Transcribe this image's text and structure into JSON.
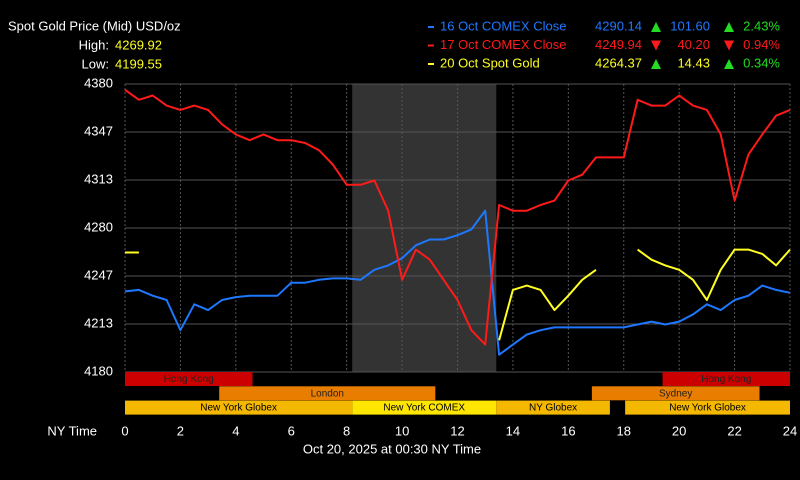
{
  "chart_data": {
    "type": "line",
    "title": "Spot Gold Price (Mid) USD/oz",
    "high_label": "High:",
    "high": 4269.92,
    "low_label": "Low:",
    "low": 4199.55,
    "x_label": "NY Time",
    "caption": "Oct 20, 2025 at 00:30 NY Time",
    "x": [
      0,
      0.5,
      1,
      1.5,
      2,
      2.5,
      3,
      3.5,
      4,
      4.5,
      5,
      5.5,
      6,
      6.5,
      7,
      7.5,
      8,
      8.5,
      9,
      9.5,
      10,
      10.5,
      11,
      11.5,
      12,
      12.5,
      13,
      13.5,
      14,
      14.5,
      15,
      15.5,
      16,
      16.5,
      17,
      17.5,
      18,
      18.5,
      19,
      19.5,
      20,
      20.5,
      21,
      21.5,
      22,
      22.5,
      23,
      23.5,
      24
    ],
    "xlim": [
      0,
      24
    ],
    "xticks": [
      0,
      2,
      4,
      6,
      8,
      10,
      12,
      14,
      16,
      18,
      20,
      22,
      24
    ],
    "ylim": [
      4180,
      4380
    ],
    "yticks": [
      4180,
      {
        "value": 4213.33,
        "label": "4213"
      },
      {
        "value": 4246.67,
        "label": "4247"
      },
      4280,
      {
        "value": 4313.33,
        "label": "4313"
      },
      {
        "value": 4346.67,
        "label": "4347"
      },
      4380
    ],
    "grid": true,
    "shade": [
      8.2,
      13.4
    ],
    "series": [
      {
        "name": "16 Oct COMEX Close",
        "color": "#1e78ff",
        "last": 4290.14,
        "change": 101.6,
        "change_label": "101.60",
        "change_pct": 2.43,
        "change_pct_label": "2.43%",
        "values": [
          4236,
          4237,
          4233,
          4230,
          4209,
          4227,
          4223,
          4230,
          4232,
          4233,
          4233,
          4233,
          4242,
          4242,
          4244,
          4245,
          4245,
          4244,
          4251,
          4254,
          4259,
          4268,
          4272,
          4272,
          4275,
          4279,
          4292,
          4192,
          4199,
          4206,
          4209,
          4211,
          4211,
          4211,
          4211,
          4211,
          4211,
          4213,
          4215,
          4213,
          4215,
          4220,
          4227,
          4223,
          4230,
          4233,
          4240,
          4237,
          4235
        ]
      },
      {
        "name": "17 Oct COMEX Close",
        "color": "#ff1a1a",
        "last": 4249.94,
        "change": -40.2,
        "change_label": "40.20",
        "change_pct": -0.94,
        "change_pct_label": "0.94%",
        "values": [
          4376,
          4369,
          4372,
          4365,
          4362,
          4365,
          4362,
          4352,
          4345,
          4341,
          4345,
          4341,
          4341,
          4339,
          4334,
          4324,
          4310,
          4310,
          4313,
          4292,
          4244,
          4265,
          4258,
          4244,
          4230,
          4209,
          4199,
          4296,
          4292,
          4292,
          4296,
          4299,
          4313,
          4317,
          4329,
          4329,
          4329,
          4369,
          4365,
          4365,
          4372,
          4365,
          4362,
          4345,
          4299,
          4331,
          4345,
          4358,
          4362
        ]
      },
      {
        "name": "20 Oct Spot Gold",
        "color": "#ffff22",
        "last": 4264.37,
        "change": 14.43,
        "change_label": "14.43",
        "change_pct": 0.34,
        "change_pct_label": "0.34%",
        "values": [
          4263,
          4263,
          null,
          null,
          null,
          null,
          null,
          null,
          null,
          null,
          null,
          null,
          null,
          null,
          null,
          null,
          null,
          null,
          null,
          null,
          null,
          null,
          null,
          null,
          null,
          null,
          null,
          4202,
          4237,
          4240,
          4237,
          4223,
          4233,
          4244,
          4251,
          null,
          null,
          4265,
          4258,
          4254,
          4251,
          4244,
          4230,
          4251,
          4265,
          4265,
          4262,
          4254,
          4265
        ]
      }
    ],
    "sessions": [
      {
        "name": "Hong Kong",
        "row": 0,
        "start": 0,
        "end": 4.6,
        "color": "#cc0000"
      },
      {
        "name": "Hong Kong",
        "row": 0,
        "start": 19.4,
        "end": 24,
        "color": "#cc0000"
      },
      {
        "name": "London",
        "row": 1,
        "start": 3.4,
        "end": 11.2,
        "color": "#e87d00"
      },
      {
        "name": "Sydney",
        "row": 1,
        "start": 16.85,
        "end": 22.9,
        "color": "#e87d00"
      },
      {
        "name": "New York Globex",
        "row": 2,
        "start": 0,
        "end": 8.2,
        "color": "#f5b800"
      },
      {
        "name": "New York COMEX",
        "row": 2,
        "start": 8.2,
        "end": 13.4,
        "color": "#ffe600"
      },
      {
        "name": "NY Globex",
        "row": 2,
        "start": 13.4,
        "end": 17.5,
        "color": "#f5b800"
      },
      {
        "name": "New York Globex",
        "row": 2,
        "start": 18.05,
        "end": 24,
        "color": "#f5b800"
      }
    ]
  }
}
